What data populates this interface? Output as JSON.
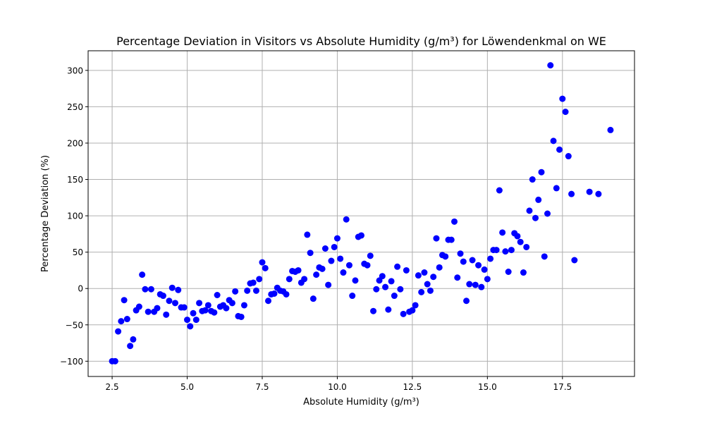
{
  "chart_data": {
    "type": "scatter",
    "title": "Percentage Deviation in Visitors vs Absolute Humidity (g/m³) for Löwendenkmal on WE",
    "xlabel": "Absolute Humidity (g/m³)",
    "ylabel": "Percentage Deviation (%)",
    "xlim": [
      1.7,
      19.9
    ],
    "ylim": [
      -121,
      327
    ],
    "xticks": [
      2.5,
      5.0,
      7.5,
      10.0,
      12.5,
      15.0,
      17.5
    ],
    "xtick_labels": [
      "2.5",
      "5.0",
      "7.5",
      "10.0",
      "12.5",
      "15.0",
      "17.5"
    ],
    "yticks": [
      -100,
      -50,
      0,
      50,
      100,
      150,
      200,
      250,
      300
    ],
    "ytick_labels": [
      "−100",
      "−50",
      "0",
      "50",
      "100",
      "150",
      "200",
      "250",
      "300"
    ],
    "grid": true,
    "marker_color": "#0000ff",
    "series": [
      {
        "points": [
          [
            2.5,
            -100
          ],
          [
            2.6,
            -100
          ],
          [
            2.7,
            -59
          ],
          [
            2.8,
            -45
          ],
          [
            2.9,
            -16
          ],
          [
            3.0,
            -42
          ],
          [
            3.1,
            -79
          ],
          [
            3.2,
            -70
          ],
          [
            3.3,
            -30
          ],
          [
            3.4,
            -25
          ],
          [
            3.5,
            19
          ],
          [
            3.6,
            -1
          ],
          [
            3.7,
            -32
          ],
          [
            3.8,
            -1
          ],
          [
            3.9,
            -32
          ],
          [
            4.0,
            -27
          ],
          [
            4.1,
            -8
          ],
          [
            4.2,
            -10
          ],
          [
            4.3,
            -36
          ],
          [
            4.4,
            -17
          ],
          [
            4.5,
            1
          ],
          [
            4.6,
            -20
          ],
          [
            4.7,
            -2
          ],
          [
            4.8,
            -26
          ],
          [
            4.9,
            -26
          ],
          [
            5.0,
            -43
          ],
          [
            5.1,
            -52
          ],
          [
            5.2,
            -34
          ],
          [
            5.3,
            -43
          ],
          [
            5.4,
            -20
          ],
          [
            5.5,
            -31
          ],
          [
            5.6,
            -30
          ],
          [
            5.7,
            -23
          ],
          [
            5.8,
            -31
          ],
          [
            5.9,
            -33
          ],
          [
            6.0,
            -9
          ],
          [
            6.1,
            -25
          ],
          [
            6.2,
            -23
          ],
          [
            6.3,
            -27
          ],
          [
            6.4,
            -16
          ],
          [
            6.5,
            -20
          ],
          [
            6.6,
            -4
          ],
          [
            6.7,
            -38
          ],
          [
            6.8,
            -39
          ],
          [
            6.9,
            -23
          ],
          [
            7.0,
            -3
          ],
          [
            7.1,
            7
          ],
          [
            7.2,
            8
          ],
          [
            7.3,
            -3
          ],
          [
            7.4,
            13
          ],
          [
            7.5,
            36
          ],
          [
            7.6,
            28
          ],
          [
            7.7,
            -17
          ],
          [
            7.8,
            -8
          ],
          [
            7.9,
            -7
          ],
          [
            8.0,
            1
          ],
          [
            8.1,
            -3
          ],
          [
            8.2,
            -4
          ],
          [
            8.3,
            -8
          ],
          [
            8.4,
            13
          ],
          [
            8.5,
            24
          ],
          [
            8.6,
            23
          ],
          [
            8.7,
            25
          ],
          [
            8.8,
            8
          ],
          [
            8.9,
            13
          ],
          [
            9.0,
            74
          ],
          [
            9.1,
            49
          ],
          [
            9.2,
            -14
          ],
          [
            9.3,
            19
          ],
          [
            9.4,
            29
          ],
          [
            9.5,
            27
          ],
          [
            9.6,
            55
          ],
          [
            9.7,
            5
          ],
          [
            9.8,
            38
          ],
          [
            9.9,
            57
          ],
          [
            10.0,
            69
          ],
          [
            10.1,
            41
          ],
          [
            10.2,
            22
          ],
          [
            10.3,
            95
          ],
          [
            10.4,
            32
          ],
          [
            10.5,
            -10
          ],
          [
            10.6,
            11
          ],
          [
            10.7,
            71
          ],
          [
            10.8,
            73
          ],
          [
            10.9,
            34
          ],
          [
            11.0,
            32
          ],
          [
            11.1,
            45
          ],
          [
            11.2,
            -31
          ],
          [
            11.3,
            -1
          ],
          [
            11.4,
            11
          ],
          [
            11.5,
            17
          ],
          [
            11.6,
            2
          ],
          [
            11.7,
            -29
          ],
          [
            11.8,
            10
          ],
          [
            11.9,
            -10
          ],
          [
            12.0,
            30
          ],
          [
            12.1,
            -1
          ],
          [
            12.2,
            -35
          ],
          [
            12.3,
            25
          ],
          [
            12.4,
            -32
          ],
          [
            12.5,
            -30
          ],
          [
            12.6,
            -23
          ],
          [
            12.7,
            18
          ],
          [
            12.8,
            -5
          ],
          [
            12.9,
            22
          ],
          [
            13.0,
            6
          ],
          [
            13.1,
            -3
          ],
          [
            13.2,
            16
          ],
          [
            13.3,
            69
          ],
          [
            13.4,
            29
          ],
          [
            13.5,
            46
          ],
          [
            13.6,
            44
          ],
          [
            13.7,
            67
          ],
          [
            13.8,
            67
          ],
          [
            13.9,
            92
          ],
          [
            14.0,
            15
          ],
          [
            14.1,
            48
          ],
          [
            14.2,
            37
          ],
          [
            14.3,
            -17
          ],
          [
            14.4,
            6
          ],
          [
            14.5,
            39
          ],
          [
            14.6,
            5
          ],
          [
            14.7,
            32
          ],
          [
            14.8,
            2
          ],
          [
            14.9,
            26
          ],
          [
            15.0,
            13
          ],
          [
            15.1,
            41
          ],
          [
            15.2,
            53
          ],
          [
            15.3,
            53
          ],
          [
            15.4,
            135
          ],
          [
            15.5,
            77
          ],
          [
            15.6,
            51
          ],
          [
            15.7,
            23
          ],
          [
            15.8,
            53
          ],
          [
            15.9,
            76
          ],
          [
            16.0,
            72
          ],
          [
            16.1,
            64
          ],
          [
            16.2,
            22
          ],
          [
            16.3,
            57
          ],
          [
            16.4,
            107
          ],
          [
            16.5,
            150
          ],
          [
            16.6,
            97
          ],
          [
            16.7,
            122
          ],
          [
            16.8,
            160
          ],
          [
            16.9,
            44
          ],
          [
            17.0,
            103
          ],
          [
            17.1,
            307
          ],
          [
            17.2,
            203
          ],
          [
            17.3,
            138
          ],
          [
            17.4,
            191
          ],
          [
            17.5,
            261
          ],
          [
            17.6,
            243
          ],
          [
            17.7,
            182
          ],
          [
            17.8,
            130
          ],
          [
            17.9,
            39
          ],
          [
            18.4,
            133
          ],
          [
            18.7,
            130
          ],
          [
            19.1,
            218
          ]
        ]
      }
    ]
  }
}
